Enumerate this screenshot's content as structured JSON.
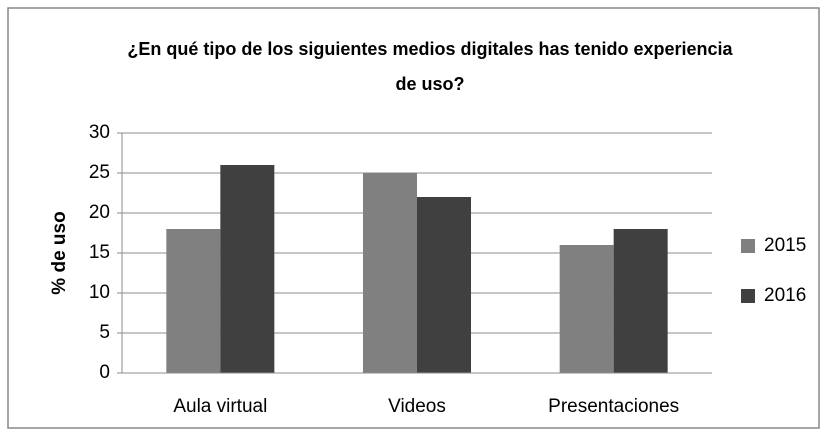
{
  "chart_data": {
    "type": "bar",
    "title": "¿En qué tipo de los siguientes medios digitales has tenido experiencia de uso?",
    "y_label": "% de uso",
    "categories": [
      "Aula virtual",
      "Videos",
      "Presentaciones"
    ],
    "series": [
      {
        "name": "2015",
        "color": "#808080",
        "values": [
          18,
          25,
          16
        ]
      },
      {
        "name": "2016",
        "color": "#404040",
        "values": [
          26,
          22,
          18
        ]
      }
    ],
    "ylim": [
      0,
      30
    ],
    "yticks": [
      0,
      5,
      10,
      15,
      20,
      25,
      30
    ],
    "grid": true,
    "legend": "right"
  }
}
